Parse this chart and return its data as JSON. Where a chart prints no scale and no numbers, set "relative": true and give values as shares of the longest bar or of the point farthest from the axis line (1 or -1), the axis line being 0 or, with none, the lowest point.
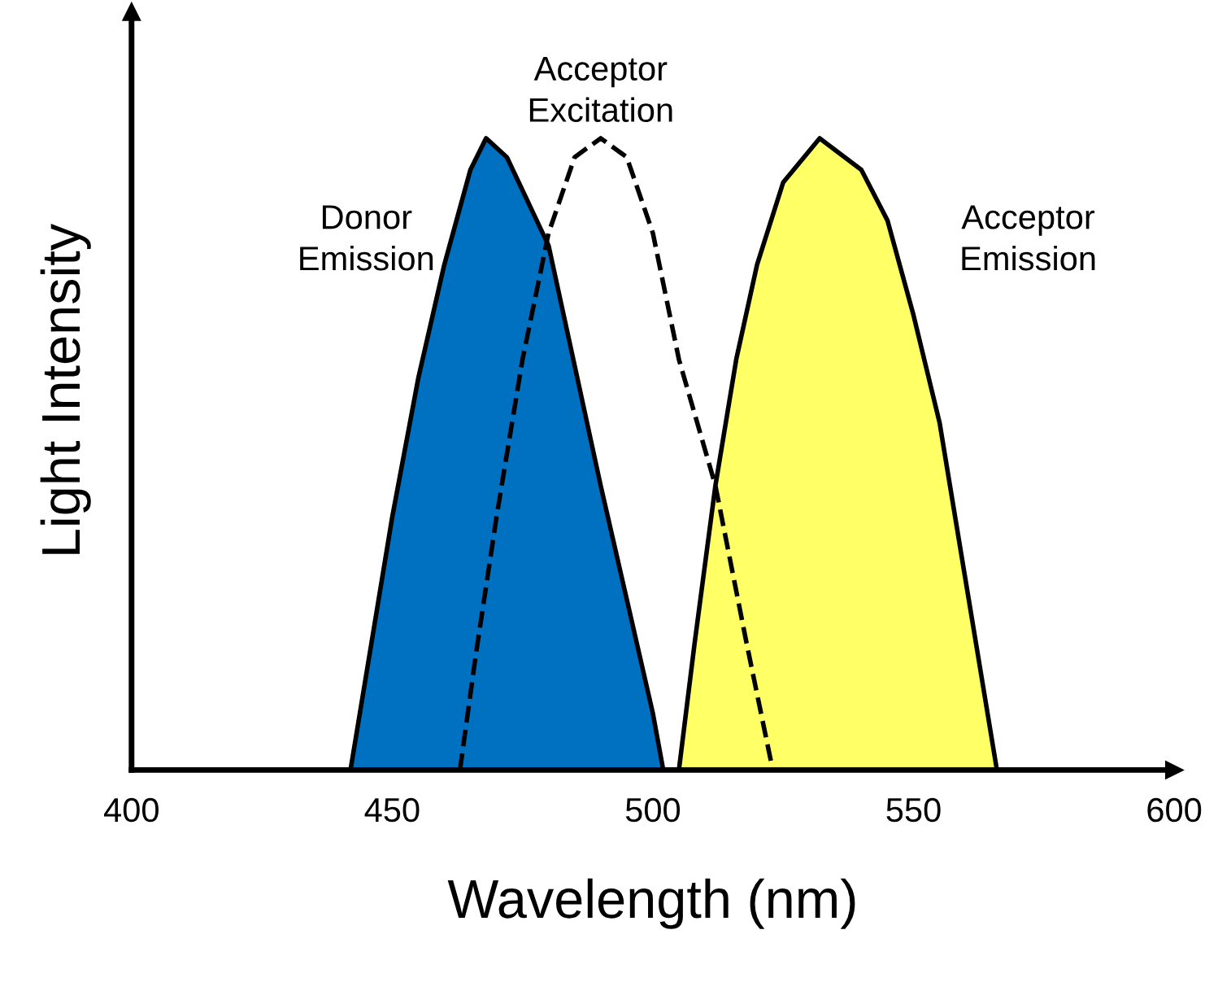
{
  "chart_data": {
    "type": "area",
    "relative": true,
    "xlabel": "Wavelength (nm)",
    "ylabel": "Light Intensity",
    "xlim": [
      400,
      600
    ],
    "xticks": [
      400,
      450,
      500,
      550,
      600
    ],
    "grid": false,
    "legend": false,
    "series": [
      {
        "name": "Donor Emission",
        "color": "#0070c0",
        "x": [
          442,
          445,
          450,
          455,
          460,
          465,
          468,
          472,
          476,
          480,
          485,
          490,
          495,
          500,
          502
        ],
        "values": [
          0,
          0.15,
          0.4,
          0.62,
          0.8,
          0.95,
          1.0,
          0.97,
          0.9,
          0.83,
          0.64,
          0.45,
          0.27,
          0.09,
          0
        ]
      },
      {
        "name": "Acceptor Excitation",
        "type": "line",
        "color": "#000000",
        "line_style": "dashed",
        "x": [
          463,
          466,
          470,
          475,
          480,
          485,
          490,
          495,
          500,
          505,
          512,
          518,
          523
        ],
        "values": [
          0,
          0.18,
          0.4,
          0.65,
          0.85,
          0.97,
          1.0,
          0.97,
          0.85,
          0.65,
          0.45,
          0.2,
          0
        ]
      },
      {
        "name": "Acceptor Emission",
        "color": "#ffff66",
        "x": [
          505,
          508,
          512,
          516,
          520,
          525,
          532,
          540,
          545,
          550,
          555,
          560,
          563,
          566
        ],
        "values": [
          0,
          0.2,
          0.45,
          0.65,
          0.8,
          0.93,
          1.0,
          0.95,
          0.87,
          0.72,
          0.55,
          0.3,
          0.15,
          0
        ]
      }
    ]
  }
}
